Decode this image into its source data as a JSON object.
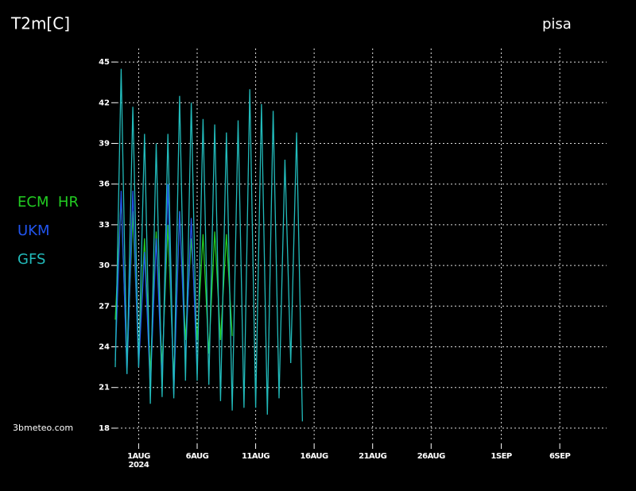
{
  "chart_data": {
    "type": "line",
    "title": "T2m[C]",
    "location": "pisa",
    "source": "3bmeteo.com",
    "x": [
      "2024-07-30T00:00",
      "2024-07-30T12:00",
      "2024-07-31T00:00",
      "2024-07-31T12:00",
      "2024-08-01T00:00",
      "2024-08-01T12:00",
      "2024-08-02T00:00",
      "2024-08-02T12:00",
      "2024-08-03T00:00",
      "2024-08-03T12:00",
      "2024-08-04T00:00",
      "2024-08-04T12:00",
      "2024-08-05T00:00",
      "2024-08-05T12:00",
      "2024-08-06T00:00",
      "2024-08-06T12:00",
      "2024-08-07T00:00",
      "2024-08-07T12:00",
      "2024-08-08T00:00",
      "2024-08-08T12:00",
      "2024-08-09T00:00",
      "2024-08-09T12:00",
      "2024-08-10T00:00",
      "2024-08-10T12:00",
      "2024-08-11T00:00",
      "2024-08-11T12:00",
      "2024-08-12T00:00",
      "2024-08-12T12:00",
      "2024-08-13T00:00",
      "2024-08-13T12:00",
      "2024-08-14T00:00",
      "2024-08-14T12:00",
      "2024-08-15T00:00"
    ],
    "series": [
      {
        "name": "ECM  HR",
        "color": "#22cc22",
        "values": [
          26,
          35,
          22.5,
          34,
          23,
          32,
          22,
          32.5,
          22.5,
          33,
          21.5,
          34,
          24.5,
          32,
          24.5,
          32.3,
          23.5,
          32.5,
          24.5,
          32.3,
          24.8,
          null,
          null,
          null,
          null,
          null,
          null,
          null,
          null,
          null,
          null,
          null,
          null
        ]
      },
      {
        "name": "UKM",
        "color": "#2255ee",
        "values": [
          23,
          35.5,
          22,
          35.5,
          22.5,
          31,
          21,
          32,
          21.5,
          36,
          20.5,
          34,
          23,
          33.5,
          22,
          null,
          null,
          null,
          null,
          null,
          null,
          null,
          null,
          null,
          null,
          null,
          null,
          null,
          null,
          null,
          null,
          null,
          null
        ]
      },
      {
        "name": "GFS",
        "color": "#22bbbb",
        "values": [
          22.5,
          44.5,
          22,
          41.7,
          22.5,
          39.7,
          19.8,
          39,
          20.3,
          39.7,
          20.2,
          42.5,
          21.5,
          42,
          21.5,
          40.8,
          21.2,
          40.4,
          20,
          39.8,
          19.3,
          40.7,
          19.5,
          43,
          19.5,
          41.9,
          19,
          41.4,
          20.2,
          37.8,
          22.8,
          39.8,
          18.5
        ]
      }
    ],
    "xlim": [
      "2024-07-30T00:00",
      "2024-09-10T00:00"
    ],
    "xticks": [
      {
        "value": "2024-08-01",
        "label": "1AUG"
      },
      {
        "value": "2024-08-06",
        "label": "6AUG"
      },
      {
        "value": "2024-08-11",
        "label": "11AUG"
      },
      {
        "value": "2024-08-16",
        "label": "16AUG"
      },
      {
        "value": "2024-08-21",
        "label": "21AUG"
      },
      {
        "value": "2024-08-26",
        "label": "26AUG"
      },
      {
        "value": "2024-09-01",
        "label": "1SEP"
      },
      {
        "value": "2024-09-06",
        "label": "6SEP"
      }
    ],
    "xtick_year": "2024",
    "ylim": [
      17,
      46
    ],
    "yticks": [
      18,
      21,
      24,
      27,
      30,
      33,
      36,
      39,
      42,
      45
    ],
    "grid": true
  }
}
